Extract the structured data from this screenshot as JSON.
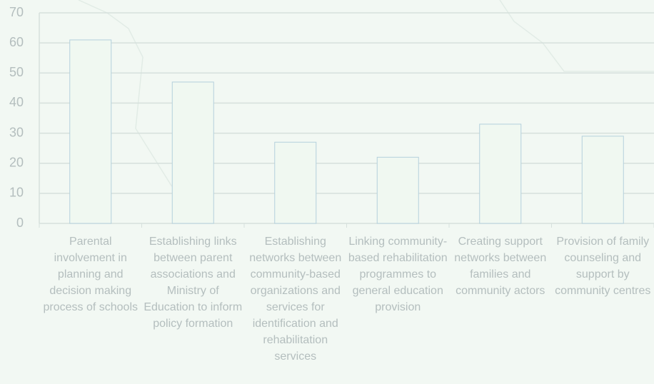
{
  "chart_data": {
    "type": "bar",
    "categories": [
      "Parental involvement in planning and decision making process of schools",
      "Establishing links between parent associations and Ministry of Education to inform policy formation",
      "Establishing networks between community-based organizations and services for identification and rehabilitation services",
      "Linking community-based rehabilitation programmes to general education provision",
      "Creating support networks between families and community actors",
      "Provision of family counseling and support by community centres"
    ],
    "values": [
      61,
      47,
      27,
      22,
      33,
      29
    ],
    "color": "#f0f8f1",
    "edge_color": "#b4d0dc",
    "ylim": [
      0,
      70
    ],
    "yticks": [
      0,
      10,
      20,
      30,
      40,
      50,
      60,
      70
    ],
    "grid": true
  }
}
